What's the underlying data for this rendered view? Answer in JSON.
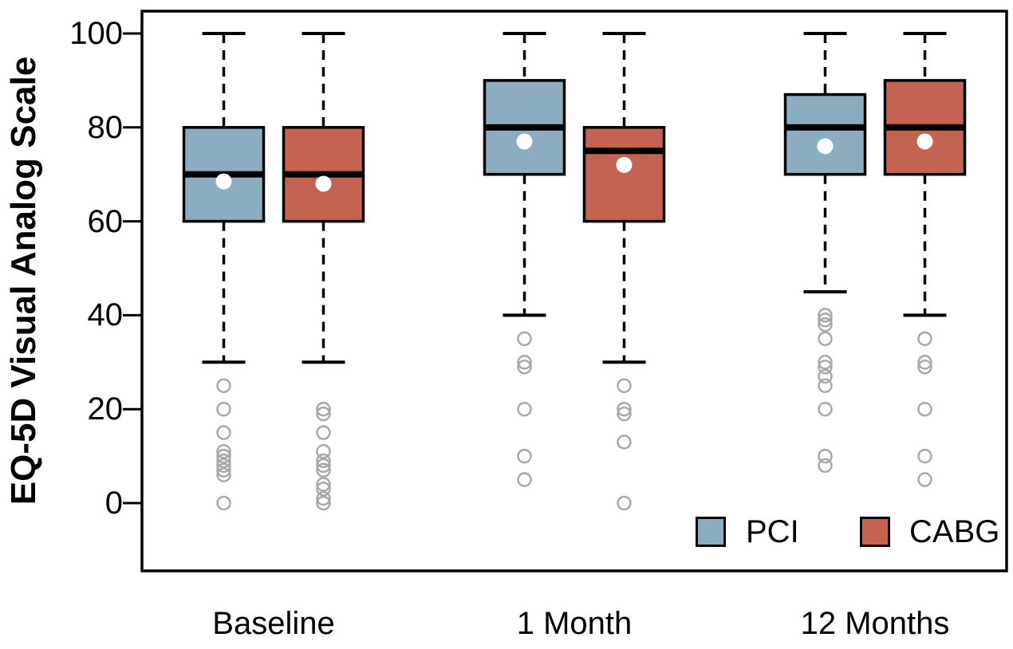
{
  "chart_data": {
    "type": "boxplot",
    "title": "",
    "ylabel": "EQ-5D Visual Analog Scale",
    "ylim": [
      0,
      100
    ],
    "yticks": [
      0,
      20,
      40,
      60,
      80,
      100
    ],
    "categories": [
      "Baseline",
      "1 Month",
      "12 Months"
    ],
    "grid": false,
    "legend_position": "inside-bottom-right",
    "outlier_color": "#a9a9a9",
    "axis_color": "#000000",
    "median_color": "#000000",
    "mean_marker_color": "#ffffff",
    "series": [
      {
        "name": "PCI",
        "color": "#8badbf",
        "boxes": [
          {
            "category": "Baseline",
            "whisker_low": 30,
            "q1": 60,
            "median": 70,
            "q3": 80,
            "whisker_high": 100,
            "mean": 68.5,
            "outliers": [
              25,
              20,
              15,
              11,
              10,
              9,
              8,
              7,
              6,
              0
            ]
          },
          {
            "category": "1 Month",
            "whisker_low": 40,
            "q1": 70,
            "median": 80,
            "q3": 90,
            "whisker_high": 100,
            "mean": 77,
            "outliers": [
              35,
              30,
              29,
              20,
              10,
              5
            ]
          },
          {
            "category": "12 Months",
            "whisker_low": 45,
            "q1": 70,
            "median": 80,
            "q3": 87,
            "whisker_high": 100,
            "mean": 76,
            "outliers": [
              40,
              39,
              38,
              35,
              30,
              29,
              27,
              25,
              20,
              10,
              8
            ]
          }
        ]
      },
      {
        "name": "CABG",
        "color": "#c56353",
        "boxes": [
          {
            "category": "Baseline",
            "whisker_low": 30,
            "q1": 60,
            "median": 70,
            "q3": 80,
            "whisker_high": 100,
            "mean": 68,
            "outliers": [
              20,
              19,
              15,
              11,
              9,
              8,
              7,
              4,
              3,
              1,
              0
            ]
          },
          {
            "category": "1 Month",
            "whisker_low": 30,
            "q1": 60,
            "median": 75,
            "q3": 80,
            "whisker_high": 100,
            "mean": 72,
            "outliers": [
              25,
              20,
              19,
              13,
              0
            ]
          },
          {
            "category": "12 Months",
            "whisker_low": 40,
            "q1": 70,
            "median": 80,
            "q3": 90,
            "whisker_high": 100,
            "mean": 77,
            "outliers": [
              35,
              30,
              29,
              20,
              10,
              5
            ]
          }
        ]
      }
    ]
  }
}
